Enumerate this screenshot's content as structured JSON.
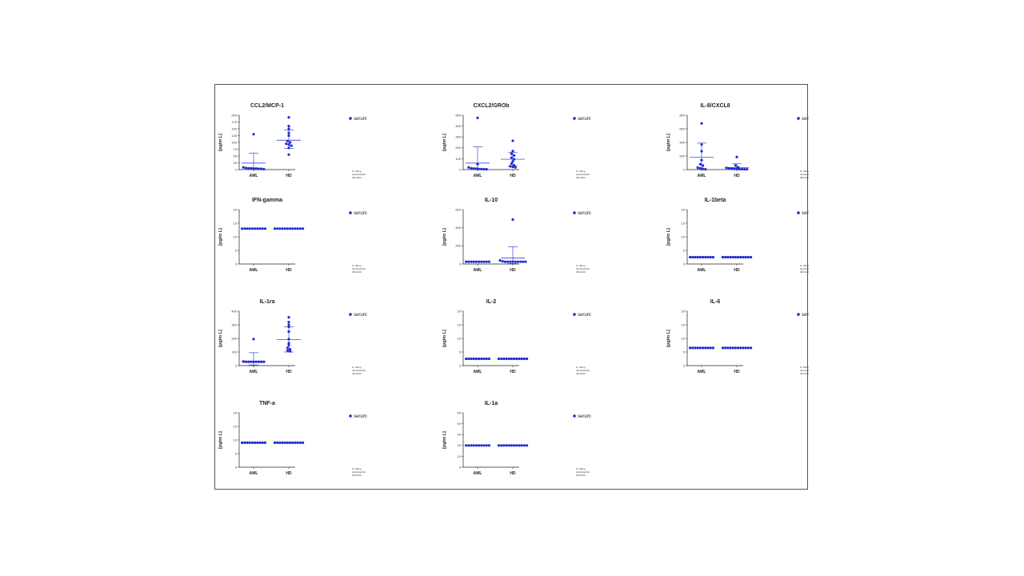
{
  "accent": "#1f2bd0",
  "chart_data": [
    {
      "type": "scatter",
      "title": "CCL2/MCP-1",
      "ylabel": "[pg/m L]",
      "categories": [
        "AML",
        "HD"
      ],
      "ylim": [
        0,
        200
      ],
      "yticks": [
        "0",
        "25",
        "50",
        "75",
        "100",
        "125",
        "150",
        "175",
        "200"
      ],
      "legend": "serum",
      "note": [
        "N: Wang",
        "ukrainian/EU",
        "08/10/20"
      ],
      "series": [
        {
          "name": "AML",
          "values": [
            130,
            8,
            6,
            5,
            5,
            4,
            4,
            3,
            3,
            2
          ],
          "mean": 24,
          "sd": [
            5,
            61
          ]
        },
        {
          "name": "HD",
          "values": [
            192,
            160,
            150,
            135,
            125,
            105,
            100,
            95,
            92,
            88,
            80,
            55
          ],
          "mean": 108,
          "sd": [
            78,
            145
          ]
        }
      ]
    },
    {
      "type": "scatter",
      "title": "CXCL2/GROb",
      "ylabel": "[pg/m L]",
      "categories": [
        "AML",
        "HD"
      ],
      "ylim": [
        0,
        500
      ],
      "yticks": [
        "0",
        "100",
        "200",
        "300",
        "400",
        "500"
      ],
      "legend": "serum",
      "note": [
        "N: Wang",
        "ukrainian/EU",
        "08/10/20"
      ],
      "series": [
        {
          "name": "AML",
          "values": [
            475,
            50,
            20,
            12,
            10,
            8,
            6,
            5,
            4,
            3
          ],
          "mean": 60,
          "sd": [
            5,
            210
          ]
        },
        {
          "name": "HD",
          "values": [
            265,
            170,
            145,
            130,
            110,
            95,
            75,
            55,
            40,
            30,
            25,
            20
          ],
          "mean": 95,
          "sd": [
            35,
            160
          ]
        }
      ]
    },
    {
      "type": "scatter",
      "title": "IL-8/CXCL8",
      "ylabel": "[pg/m L]",
      "categories": [
        "AML",
        "HD"
      ],
      "ylim": [
        0,
        800
      ],
      "yticks": [
        "0",
        "200",
        "400",
        "600",
        "800"
      ],
      "legend": "serum",
      "note": [
        "N: Wang",
        "ukrainian/EU",
        "08/10/20"
      ],
      "series": [
        {
          "name": "AML",
          "values": [
            680,
            370,
            270,
            140,
            80,
            60,
            30,
            20,
            10,
            5
          ],
          "mean": 180,
          "sd": [
            5,
            390
          ]
        },
        {
          "name": "HD",
          "values": [
            185,
            60,
            35,
            25,
            20,
            15,
            12,
            10,
            8,
            6,
            5,
            5
          ],
          "mean": 30,
          "sd": [
            5,
            85
          ]
        }
      ]
    },
    {
      "type": "scatter",
      "title": "IFN-gamma",
      "ylabel": "[pg/m L]",
      "categories": [
        "AML",
        "HD"
      ],
      "ylim": [
        0,
        20
      ],
      "yticks": [
        "0",
        "5",
        "10",
        "15",
        "20"
      ],
      "legend": "serum",
      "note": [
        "N: Wang",
        "ukrainian/EU",
        "08/10/20"
      ],
      "series": [
        {
          "name": "AML",
          "values": [
            13,
            13,
            13,
            13,
            13,
            13,
            13,
            13,
            13,
            13
          ],
          "mean": 13,
          "sd": [
            13,
            13
          ]
        },
        {
          "name": "HD",
          "values": [
            13,
            13,
            13,
            13,
            13,
            13,
            13,
            13,
            13,
            13,
            13,
            13
          ],
          "mean": 13,
          "sd": [
            13,
            13
          ]
        }
      ]
    },
    {
      "type": "scatter",
      "title": "IL-10",
      "ylabel": "[pg/m L]",
      "categories": [
        "AML",
        "HD"
      ],
      "ylim": [
        0,
        600
      ],
      "yticks": [
        "0",
        "200",
        "400",
        "600"
      ],
      "legend": "serum",
      "note": [
        "N: Wang",
        "ukrainian/EU",
        "08/10/20"
      ],
      "series": [
        {
          "name": "AML",
          "values": [
            25,
            25,
            25,
            25,
            25,
            25,
            25,
            25,
            25,
            25
          ],
          "mean": 25,
          "sd": [
            25,
            25
          ]
        },
        {
          "name": "HD",
          "values": [
            490,
            40,
            30,
            25,
            25,
            25,
            25,
            25,
            25,
            25,
            25,
            25
          ],
          "mean": 65,
          "sd": [
            5,
            190
          ]
        }
      ]
    },
    {
      "type": "scatter",
      "title": "IL-1beta",
      "ylabel": "[pg/m L]",
      "categories": [
        "AML",
        "HD"
      ],
      "ylim": [
        0,
        20
      ],
      "yticks": [
        "0",
        "5",
        "10",
        "15",
        "20"
      ],
      "legend": "serum",
      "note": [
        "N: Wang",
        "ukrainian/EU",
        "08/10/20"
      ],
      "series": [
        {
          "name": "AML",
          "values": [
            2.5,
            2.5,
            2.5,
            2.5,
            2.5,
            2.5,
            2.5,
            2.5,
            2.5,
            2.5
          ],
          "mean": 2.5,
          "sd": [
            2.5,
            2.5
          ]
        },
        {
          "name": "HD",
          "values": [
            2.5,
            2.5,
            2.5,
            2.5,
            2.5,
            2.5,
            2.5,
            2.5,
            2.5,
            2.5,
            2.5,
            2.5
          ],
          "mean": 2.5,
          "sd": [
            2.5,
            2.5
          ]
        }
      ]
    },
    {
      "type": "scatter",
      "title": "IL-1ra",
      "ylabel": "[pg/m L]",
      "categories": [
        "AML",
        "HD"
      ],
      "ylim": [
        0,
        400
      ],
      "yticks": [
        "0",
        "100",
        "200",
        "300",
        "400"
      ],
      "legend": "serum",
      "note": [
        "N: Wang",
        "ukrainian/EU",
        "08/10/20"
      ],
      "series": [
        {
          "name": "AML",
          "values": [
            195,
            30,
            28,
            28,
            28,
            28,
            28,
            28,
            28,
            28
          ],
          "mean": 30,
          "sd": [
            5,
            95
          ]
        },
        {
          "name": "HD",
          "values": [
            355,
            320,
            300,
            285,
            250,
            195,
            165,
            150,
            130,
            120,
            110,
            105
          ],
          "mean": 190,
          "sd": [
            100,
            285
          ]
        }
      ]
    },
    {
      "type": "scatter",
      "title": "IL-2",
      "ylabel": "[pg/m L]",
      "categories": [
        "AML",
        "HD"
      ],
      "ylim": [
        0,
        20
      ],
      "yticks": [
        "0",
        "5",
        "10",
        "15",
        "20"
      ],
      "legend": "serum",
      "note": [
        "N: Wang",
        "ukrainian/EU",
        "08/10/20"
      ],
      "series": [
        {
          "name": "AML",
          "values": [
            2.5,
            2.5,
            2.5,
            2.5,
            2.5,
            2.5,
            2.5,
            2.5,
            2.5,
            2.5
          ],
          "mean": 2.5,
          "sd": [
            2.5,
            2.5
          ]
        },
        {
          "name": "HD",
          "values": [
            2.5,
            2.5,
            2.5,
            2.5,
            2.5,
            2.5,
            2.5,
            2.5,
            2.5,
            2.5,
            2.5,
            2.5
          ],
          "mean": 2.5,
          "sd": [
            2.5,
            2.5
          ]
        }
      ]
    },
    {
      "type": "scatter",
      "title": "IL-6",
      "ylabel": "[pg/m L]",
      "categories": [
        "AML",
        "HD"
      ],
      "ylim": [
        0,
        20
      ],
      "yticks": [
        "0",
        "5",
        "10",
        "15",
        "20"
      ],
      "legend": "serum",
      "note": [
        "N: Wang",
        "ukrainian/EU",
        "08/10/20"
      ],
      "series": [
        {
          "name": "AML",
          "values": [
            6.5,
            6.5,
            6.5,
            6.5,
            6.5,
            6.5,
            6.5,
            6.5,
            6.5,
            6.5
          ],
          "mean": 6.5,
          "sd": [
            6.5,
            6.5
          ]
        },
        {
          "name": "HD",
          "values": [
            6.5,
            6.5,
            6.5,
            6.5,
            6.5,
            6.5,
            6.5,
            6.5,
            6.5,
            6.5,
            6.5,
            6.5
          ],
          "mean": 6.5,
          "sd": [
            6.5,
            6.5
          ]
        }
      ]
    },
    {
      "type": "scatter",
      "title": "TNF-a",
      "ylabel": "[pg/m L]",
      "categories": [
        "AML",
        "HD"
      ],
      "ylim": [
        0,
        20
      ],
      "yticks": [
        "0",
        "5",
        "10",
        "15",
        "20"
      ],
      "legend": "serum",
      "note": [
        "N: Wang",
        "ukrainian/EU",
        "08/10/20"
      ],
      "series": [
        {
          "name": "AML",
          "values": [
            9,
            9,
            9,
            9,
            9,
            9,
            9,
            9,
            9,
            9
          ],
          "mean": 9,
          "sd": [
            9,
            9
          ]
        },
        {
          "name": "HD",
          "values": [
            9,
            9,
            9,
            9,
            9,
            9,
            9,
            9,
            9,
            9,
            9,
            9
          ],
          "mean": 9,
          "sd": [
            9,
            9
          ]
        }
      ]
    },
    {
      "type": "scatter",
      "title": "IL-1a",
      "ylabel": "[pg/m L]",
      "categories": [
        "AML",
        "HD"
      ],
      "ylim": [
        0,
        50
      ],
      "yticks": [
        "0",
        "10",
        "20",
        "30",
        "40",
        "50"
      ],
      "legend": "serum",
      "note": [
        "N: Wang",
        "ukrainian/EU",
        "08/10/20"
      ],
      "series": [
        {
          "name": "AML",
          "values": [
            20,
            20,
            20,
            20,
            20,
            20,
            20,
            20,
            20,
            20
          ],
          "mean": 20,
          "sd": [
            20,
            20
          ]
        },
        {
          "name": "HD",
          "values": [
            20,
            20,
            20,
            20,
            20,
            20,
            20,
            20,
            20,
            20,
            20,
            20
          ],
          "mean": 20,
          "sd": [
            20,
            20
          ]
        }
      ]
    }
  ]
}
